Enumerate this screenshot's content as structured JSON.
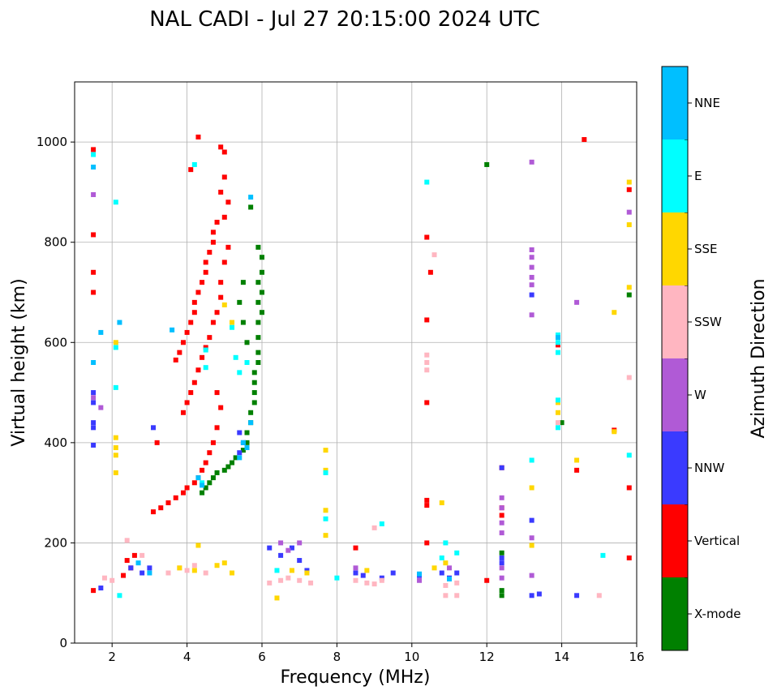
{
  "chart_data": {
    "type": "scatter",
    "title": "NAL CADI - Jul 27 20:15:00 2024 UTC",
    "xlabel": "Frequency (MHz)",
    "ylabel": "Virtual height (km)",
    "xlim": [
      1,
      16
    ],
    "ylim": [
      0,
      1120
    ],
    "xticks": [
      "2",
      "4",
      "6",
      "8",
      "10",
      "12",
      "14",
      "16"
    ],
    "yticks": [
      "0",
      "200",
      "400",
      "600",
      "800",
      "1000"
    ],
    "grid": true,
    "colorbar": {
      "label": "Azimuth Direction",
      "categories": [
        {
          "name": "X-mode",
          "color": "#008000"
        },
        {
          "name": "Vertical",
          "color": "#ff0000"
        },
        {
          "name": "NNW",
          "color": "#3a3aff"
        },
        {
          "name": "W",
          "color": "#b05ad6"
        },
        {
          "name": "SSW",
          "color": "#ffb6c1"
        },
        {
          "name": "SSE",
          "color": "#ffd700"
        },
        {
          "name": "E",
          "color": "#00ffff"
        },
        {
          "name": "NNE",
          "color": "#00bfff"
        }
      ]
    },
    "series": [
      {
        "name": "Vertical",
        "points": [
          [
            1.5,
            985
          ],
          [
            1.5,
            815
          ],
          [
            1.5,
            740
          ],
          [
            1.5,
            700
          ],
          [
            4.3,
            1010
          ],
          [
            4.1,
            945
          ],
          [
            4.9,
            990
          ],
          [
            5.0,
            980
          ],
          [
            5.0,
            930
          ],
          [
            4.9,
            900
          ],
          [
            5.1,
            880
          ],
          [
            5.0,
            850
          ],
          [
            4.8,
            840
          ],
          [
            4.7,
            820
          ],
          [
            4.7,
            800
          ],
          [
            4.6,
            780
          ],
          [
            4.5,
            760
          ],
          [
            4.5,
            740
          ],
          [
            4.4,
            720
          ],
          [
            4.3,
            700
          ],
          [
            4.2,
            680
          ],
          [
            4.2,
            660
          ],
          [
            4.1,
            640
          ],
          [
            4.0,
            620
          ],
          [
            3.9,
            600
          ],
          [
            3.8,
            580
          ],
          [
            3.7,
            565
          ],
          [
            5.1,
            790
          ],
          [
            5.0,
            760
          ],
          [
            4.9,
            720
          ],
          [
            4.9,
            690
          ],
          [
            4.8,
            660
          ],
          [
            4.7,
            640
          ],
          [
            4.6,
            610
          ],
          [
            4.5,
            590
          ],
          [
            4.4,
            570
          ],
          [
            4.3,
            545
          ],
          [
            4.2,
            520
          ],
          [
            4.1,
            500
          ],
          [
            4.0,
            480
          ],
          [
            3.9,
            460
          ],
          [
            4.8,
            500
          ],
          [
            4.9,
            470
          ],
          [
            4.8,
            430
          ],
          [
            4.7,
            400
          ],
          [
            4.6,
            380
          ],
          [
            4.5,
            360
          ],
          [
            4.4,
            345
          ],
          [
            4.3,
            330
          ],
          [
            4.2,
            320
          ],
          [
            4.0,
            310
          ],
          [
            3.9,
            300
          ],
          [
            3.7,
            290
          ],
          [
            3.5,
            280
          ],
          [
            3.3,
            270
          ],
          [
            3.1,
            262
          ],
          [
            3.2,
            400
          ],
          [
            10.4,
            810
          ],
          [
            10.5,
            740
          ],
          [
            10.4,
            645
          ],
          [
            10.4,
            480
          ],
          [
            10.4,
            285
          ],
          [
            10.4,
            275
          ],
          [
            10.4,
            200
          ],
          [
            8.5,
            190
          ],
          [
            12.4,
            350
          ],
          [
            12.4,
            270
          ],
          [
            12.4,
            255
          ],
          [
            13.9,
            595
          ],
          [
            14.4,
            345
          ],
          [
            14.6,
            1005
          ],
          [
            15.4,
            425
          ],
          [
            15.8,
            905
          ],
          [
            15.8,
            310
          ],
          [
            15.8,
            170
          ],
          [
            1.5,
            105
          ],
          [
            2.4,
            165
          ],
          [
            2.5,
            150
          ],
          [
            2.6,
            175
          ],
          [
            2.3,
            135
          ],
          [
            12.0,
            125
          ]
        ]
      },
      {
        "name": "X-mode",
        "points": [
          [
            5.7,
            870
          ],
          [
            5.9,
            790
          ],
          [
            6.0,
            770
          ],
          [
            6.0,
            740
          ],
          [
            5.9,
            720
          ],
          [
            6.0,
            700
          ],
          [
            5.9,
            680
          ],
          [
            6.0,
            660
          ],
          [
            5.9,
            640
          ],
          [
            5.9,
            610
          ],
          [
            5.9,
            580
          ],
          [
            5.9,
            560
          ],
          [
            5.8,
            540
          ],
          [
            5.8,
            520
          ],
          [
            5.8,
            500
          ],
          [
            5.8,
            480
          ],
          [
            5.7,
            460
          ],
          [
            5.7,
            440
          ],
          [
            5.6,
            420
          ],
          [
            5.6,
            400
          ],
          [
            5.5,
            385
          ],
          [
            5.3,
            370
          ],
          [
            5.2,
            360
          ],
          [
            5.1,
            352
          ],
          [
            5.0,
            345
          ],
          [
            4.8,
            340
          ],
          [
            4.7,
            330
          ],
          [
            4.6,
            320
          ],
          [
            4.5,
            310
          ],
          [
            4.4,
            300
          ],
          [
            5.5,
            720
          ],
          [
            5.4,
            680
          ],
          [
            5.5,
            640
          ],
          [
            5.6,
            600
          ],
          [
            12.4,
            180
          ],
          [
            12.4,
            105
          ],
          [
            12.4,
            95
          ],
          [
            14.0,
            440
          ],
          [
            15.8,
            695
          ],
          [
            12.0,
            955
          ]
        ]
      },
      {
        "name": "NNW",
        "points": [
          [
            1.5,
            500
          ],
          [
            1.5,
            480
          ],
          [
            1.5,
            440
          ],
          [
            1.5,
            430
          ],
          [
            1.5,
            395
          ],
          [
            3.1,
            430
          ],
          [
            5.4,
            420
          ],
          [
            5.5,
            400
          ],
          [
            5.4,
            380
          ],
          [
            6.2,
            190
          ],
          [
            6.5,
            175
          ],
          [
            6.8,
            190
          ],
          [
            7.0,
            165
          ],
          [
            7.2,
            145
          ],
          [
            8.5,
            140
          ],
          [
            8.7,
            135
          ],
          [
            9.2,
            130
          ],
          [
            9.5,
            140
          ],
          [
            10.2,
            135
          ],
          [
            10.8,
            140
          ],
          [
            11.0,
            130
          ],
          [
            11.2,
            140
          ],
          [
            12.4,
            350
          ],
          [
            12.4,
            170
          ],
          [
            12.4,
            160
          ],
          [
            13.2,
            695
          ],
          [
            13.2,
            245
          ],
          [
            13.2,
            95
          ],
          [
            13.4,
            98
          ],
          [
            14.4,
            95
          ],
          [
            2.5,
            150
          ],
          [
            2.8,
            140
          ],
          [
            3.0,
            150
          ],
          [
            1.7,
            110
          ]
        ]
      },
      {
        "name": "W",
        "points": [
          [
            1.5,
            895
          ],
          [
            1.5,
            490
          ],
          [
            1.7,
            470
          ],
          [
            12.4,
            290
          ],
          [
            12.4,
            270
          ],
          [
            12.4,
            240
          ],
          [
            12.4,
            220
          ],
          [
            12.4,
            150
          ],
          [
            12.4,
            130
          ],
          [
            13.2,
            960
          ],
          [
            13.2,
            785
          ],
          [
            13.2,
            770
          ],
          [
            13.2,
            750
          ],
          [
            13.2,
            730
          ],
          [
            13.2,
            715
          ],
          [
            13.2,
            655
          ],
          [
            13.2,
            210
          ],
          [
            13.2,
            135
          ],
          [
            14.4,
            680
          ],
          [
            15.8,
            860
          ],
          [
            6.5,
            200
          ],
          [
            6.7,
            185
          ],
          [
            7.0,
            200
          ],
          [
            8.5,
            150
          ],
          [
            10.2,
            125
          ],
          [
            11.0,
            150
          ]
        ]
      },
      {
        "name": "SSW",
        "points": [
          [
            10.4,
            575
          ],
          [
            10.4,
            560
          ],
          [
            10.4,
            545
          ],
          [
            10.6,
            775
          ],
          [
            13.9,
            440
          ],
          [
            15.8,
            530
          ],
          [
            15.0,
            95
          ],
          [
            10.9,
            95
          ],
          [
            11.2,
            95
          ],
          [
            10.9,
            115
          ],
          [
            11.2,
            120
          ],
          [
            6.2,
            120
          ],
          [
            6.5,
            125
          ],
          [
            6.7,
            130
          ],
          [
            7.0,
            125
          ],
          [
            7.3,
            120
          ],
          [
            8.5,
            125
          ],
          [
            8.8,
            120
          ],
          [
            9.0,
            118
          ],
          [
            9.2,
            125
          ],
          [
            9.0,
            230
          ],
          [
            4.0,
            145
          ],
          [
            4.5,
            140
          ],
          [
            3.5,
            140
          ],
          [
            2.8,
            175
          ],
          [
            2.4,
            205
          ],
          [
            2.0,
            125
          ],
          [
            1.8,
            130
          ],
          [
            3.8,
            150
          ],
          [
            4.2,
            155
          ]
        ]
      },
      {
        "name": "SSE",
        "points": [
          [
            2.1,
            600
          ],
          [
            2.1,
            410
          ],
          [
            2.1,
            390
          ],
          [
            2.1,
            375
          ],
          [
            2.1,
            340
          ],
          [
            4.3,
            195
          ],
          [
            7.7,
            385
          ],
          [
            7.7,
            345
          ],
          [
            7.7,
            265
          ],
          [
            7.7,
            215
          ],
          [
            10.8,
            280
          ],
          [
            13.2,
            310
          ],
          [
            13.2,
            195
          ],
          [
            13.9,
            480
          ],
          [
            13.9,
            460
          ],
          [
            14.4,
            365
          ],
          [
            15.4,
            660
          ],
          [
            15.4,
            422
          ],
          [
            15.8,
            920
          ],
          [
            15.8,
            835
          ],
          [
            15.8,
            710
          ],
          [
            6.4,
            90
          ],
          [
            4.8,
            155
          ],
          [
            5.0,
            160
          ],
          [
            3.8,
            150
          ],
          [
            4.2,
            145
          ],
          [
            5.2,
            140
          ],
          [
            6.8,
            145
          ],
          [
            7.2,
            140
          ],
          [
            8.8,
            145
          ],
          [
            10.6,
            150
          ],
          [
            10.9,
            160
          ],
          [
            5.0,
            675
          ],
          [
            5.2,
            640
          ]
        ]
      },
      {
        "name": "E",
        "points": [
          [
            1.5,
            975
          ],
          [
            2.1,
            880
          ],
          [
            2.1,
            590
          ],
          [
            2.1,
            510
          ],
          [
            4.2,
            955
          ],
          [
            5.2,
            630
          ],
          [
            5.3,
            570
          ],
          [
            5.4,
            540
          ],
          [
            4.5,
            585
          ],
          [
            4.5,
            550
          ],
          [
            10.4,
            920
          ],
          [
            13.9,
            615
          ],
          [
            13.9,
            600
          ],
          [
            13.9,
            580
          ],
          [
            13.9,
            485
          ],
          [
            13.9,
            430
          ],
          [
            13.2,
            365
          ],
          [
            15.1,
            175
          ],
          [
            15.8,
            375
          ],
          [
            7.7,
            340
          ],
          [
            7.7,
            248
          ],
          [
            10.9,
            200
          ],
          [
            11.2,
            180
          ],
          [
            10.8,
            170
          ],
          [
            6.4,
            145
          ],
          [
            8.0,
            130
          ],
          [
            2.2,
            95
          ],
          [
            9.2,
            238
          ],
          [
            4.4,
            320
          ],
          [
            5.6,
            560
          ]
        ]
      },
      {
        "name": "NNE",
        "points": [
          [
            1.5,
            950
          ],
          [
            1.5,
            560
          ],
          [
            1.7,
            620
          ],
          [
            2.2,
            640
          ],
          [
            3.6,
            625
          ],
          [
            5.7,
            890
          ],
          [
            5.5,
            400
          ],
          [
            5.6,
            390
          ],
          [
            5.7,
            440
          ],
          [
            4.4,
            315
          ],
          [
            4.3,
            330
          ],
          [
            5.4,
            370
          ],
          [
            13.9,
            610
          ],
          [
            10.2,
            138
          ],
          [
            11.0,
            128
          ],
          [
            2.7,
            160
          ],
          [
            3.0,
            140
          ]
        ]
      }
    ]
  }
}
